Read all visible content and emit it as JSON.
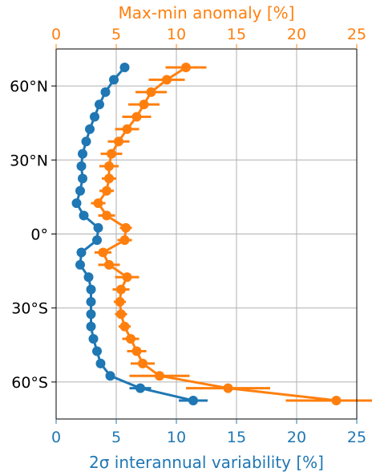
{
  "chart_data": {
    "type": "scatter",
    "y_axis": {
      "ylim": [
        -75,
        75
      ],
      "ticks": [
        {
          "value": 60,
          "label": "60°N"
        },
        {
          "value": 30,
          "label": "30°N"
        },
        {
          "value": 0,
          "label": "0°"
        },
        {
          "value": -30,
          "label": "30°S"
        },
        {
          "value": -60,
          "label": "60°S"
        }
      ]
    },
    "bottom_axis": {
      "xlabel": "2σ interannual variability [%]",
      "xlim": [
        0,
        25
      ],
      "ticks": [
        "0",
        "5",
        "10",
        "15",
        "20",
        "25"
      ],
      "color": "#1f77b4"
    },
    "top_axis": {
      "xlabel": "Max-min anomaly [%]",
      "xlim": [
        0,
        25
      ],
      "ticks": [
        "0",
        "5",
        "10",
        "15",
        "20",
        "25"
      ],
      "color": "#ff7f0e"
    },
    "grid": true,
    "series": [
      {
        "color": "#1f77b4",
        "axis": "bottom",
        "points": [
          {
            "lat": 67.5,
            "x": 5.7
          },
          {
            "lat": 62.5,
            "x": 4.8
          },
          {
            "lat": 57.5,
            "x": 4.1
          },
          {
            "lat": 52.5,
            "x": 3.6
          },
          {
            "lat": 47.5,
            "x": 3.2
          },
          {
            "lat": 42.5,
            "x": 2.8
          },
          {
            "lat": 37.5,
            "x": 2.5
          },
          {
            "lat": 32.5,
            "x": 2.2
          },
          {
            "lat": 27.5,
            "x": 2.1
          },
          {
            "lat": 22.5,
            "x": 2.2
          },
          {
            "lat": 17.5,
            "x": 2.0
          },
          {
            "lat": 12.5,
            "x": 1.7
          },
          {
            "lat": 7.5,
            "x": 2.3
          },
          {
            "lat": 2.5,
            "x": 3.5
          },
          {
            "lat": -2.5,
            "x": 3.4
          },
          {
            "lat": -7.5,
            "x": 2.1
          },
          {
            "lat": -12.5,
            "x": 2.0
          },
          {
            "lat": -17.5,
            "x": 2.7
          },
          {
            "lat": -22.5,
            "x": 2.9
          },
          {
            "lat": -27.5,
            "x": 2.9
          },
          {
            "lat": -32.5,
            "x": 2.9
          },
          {
            "lat": -37.5,
            "x": 2.9
          },
          {
            "lat": -42.5,
            "x": 3.1
          },
          {
            "lat": -47.5,
            "x": 3.4
          },
          {
            "lat": -52.5,
            "x": 3.7
          },
          {
            "lat": -57.5,
            "x": 4.5
          },
          {
            "lat": -62.5,
            "x": 7.0,
            "err": 0.9
          },
          {
            "lat": -67.5,
            "x": 11.4,
            "err": 1.2
          }
        ]
      },
      {
        "color": "#ff7f0e",
        "axis": "top",
        "points": [
          {
            "lat": 67.5,
            "x": 10.8,
            "err": 1.7
          },
          {
            "lat": 62.5,
            "x": 9.2,
            "err": 1.5
          },
          {
            "lat": 57.5,
            "x": 7.9,
            "err": 1.3
          },
          {
            "lat": 52.5,
            "x": 7.3,
            "err": 1.3
          },
          {
            "lat": 47.5,
            "x": 6.7,
            "err": 1.2
          },
          {
            "lat": 42.5,
            "x": 5.9,
            "err": 1.0
          },
          {
            "lat": 37.5,
            "x": 5.2,
            "err": 0.9
          },
          {
            "lat": 32.5,
            "x": 4.6,
            "err": 0.9
          },
          {
            "lat": 27.5,
            "x": 4.4,
            "err": 0.8
          },
          {
            "lat": 22.5,
            "x": 4.4,
            "err": 0.6
          },
          {
            "lat": 17.5,
            "x": 4.2,
            "err": 0.6
          },
          {
            "lat": 12.5,
            "x": 3.5,
            "err": 0.6
          },
          {
            "lat": 7.5,
            "x": 4.2,
            "err": 0.7
          },
          {
            "lat": 2.5,
            "x": 5.8,
            "err": 0.5
          },
          {
            "lat": -2.5,
            "x": 5.7,
            "err": 0.6
          },
          {
            "lat": -7.5,
            "x": 3.9,
            "err": 0.7
          },
          {
            "lat": -12.5,
            "x": 4.4,
            "err": 0.9
          },
          {
            "lat": -17.5,
            "x": 5.9,
            "err": 1.0
          },
          {
            "lat": -22.5,
            "x": 5.4,
            "err": 0.7
          },
          {
            "lat": -27.5,
            "x": 5.3,
            "err": 0.5
          },
          {
            "lat": -32.5,
            "x": 5.4,
            "err": 0.5
          },
          {
            "lat": -37.5,
            "x": 5.7,
            "err": 0.5
          },
          {
            "lat": -42.5,
            "x": 6.2,
            "err": 0.7
          },
          {
            "lat": -47.5,
            "x": 6.7,
            "err": 0.8
          },
          {
            "lat": -52.5,
            "x": 7.2,
            "err": 1.0
          },
          {
            "lat": -57.5,
            "x": 8.6,
            "err": 2.5
          },
          {
            "lat": -62.5,
            "x": 14.3,
            "err": 3.5
          },
          {
            "lat": -67.5,
            "x": 23.3,
            "err": 4.2
          }
        ]
      }
    ]
  }
}
